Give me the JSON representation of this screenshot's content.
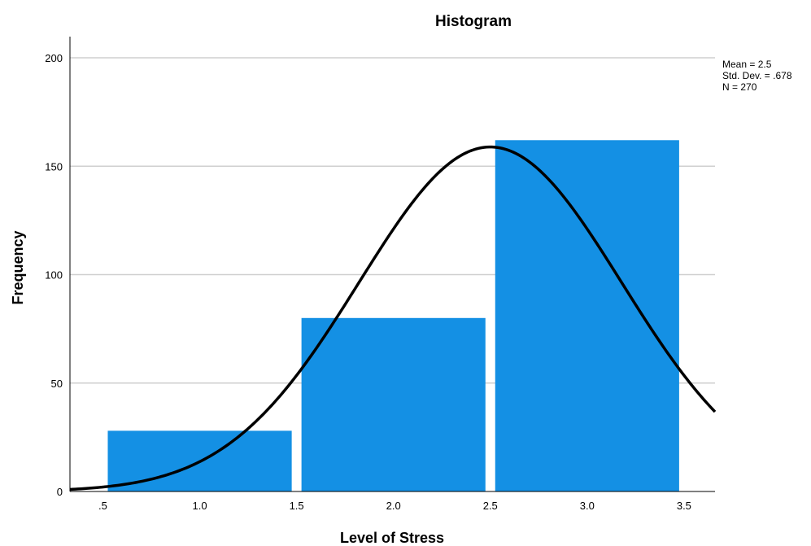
{
  "chart_data": {
    "type": "bar",
    "title": "Histogram",
    "xlabel": "Level of Stress",
    "ylabel": "Frequency",
    "bins": [
      {
        "from": 0.5,
        "to": 1.5,
        "value": 28
      },
      {
        "from": 1.5,
        "to": 2.5,
        "value": 80
      },
      {
        "from": 2.5,
        "to": 3.5,
        "value": 162
      }
    ],
    "x_ticks": [
      {
        "value": 0.5,
        "label": ".5"
      },
      {
        "value": 1.0,
        "label": "1.0"
      },
      {
        "value": 1.5,
        "label": "1.5"
      },
      {
        "value": 2.0,
        "label": "2.0"
      },
      {
        "value": 2.5,
        "label": "2.5"
      },
      {
        "value": 3.0,
        "label": "3.0"
      },
      {
        "value": 3.5,
        "label": "3.5"
      }
    ],
    "y_ticks": [
      0,
      50,
      100,
      150,
      200
    ],
    "xlim": [
      0.33,
      3.66
    ],
    "ylim": [
      0,
      200
    ],
    "grid": true,
    "bar_color": "#1490e4",
    "curve_color": "#000000",
    "normal_curve": {
      "mean": 2.5,
      "std": 0.678,
      "n": 270,
      "bin_width": 1.0
    },
    "stats": {
      "mean": "Mean = 2.5",
      "std": "Std. Dev. = .678",
      "n": "N = 270"
    }
  }
}
